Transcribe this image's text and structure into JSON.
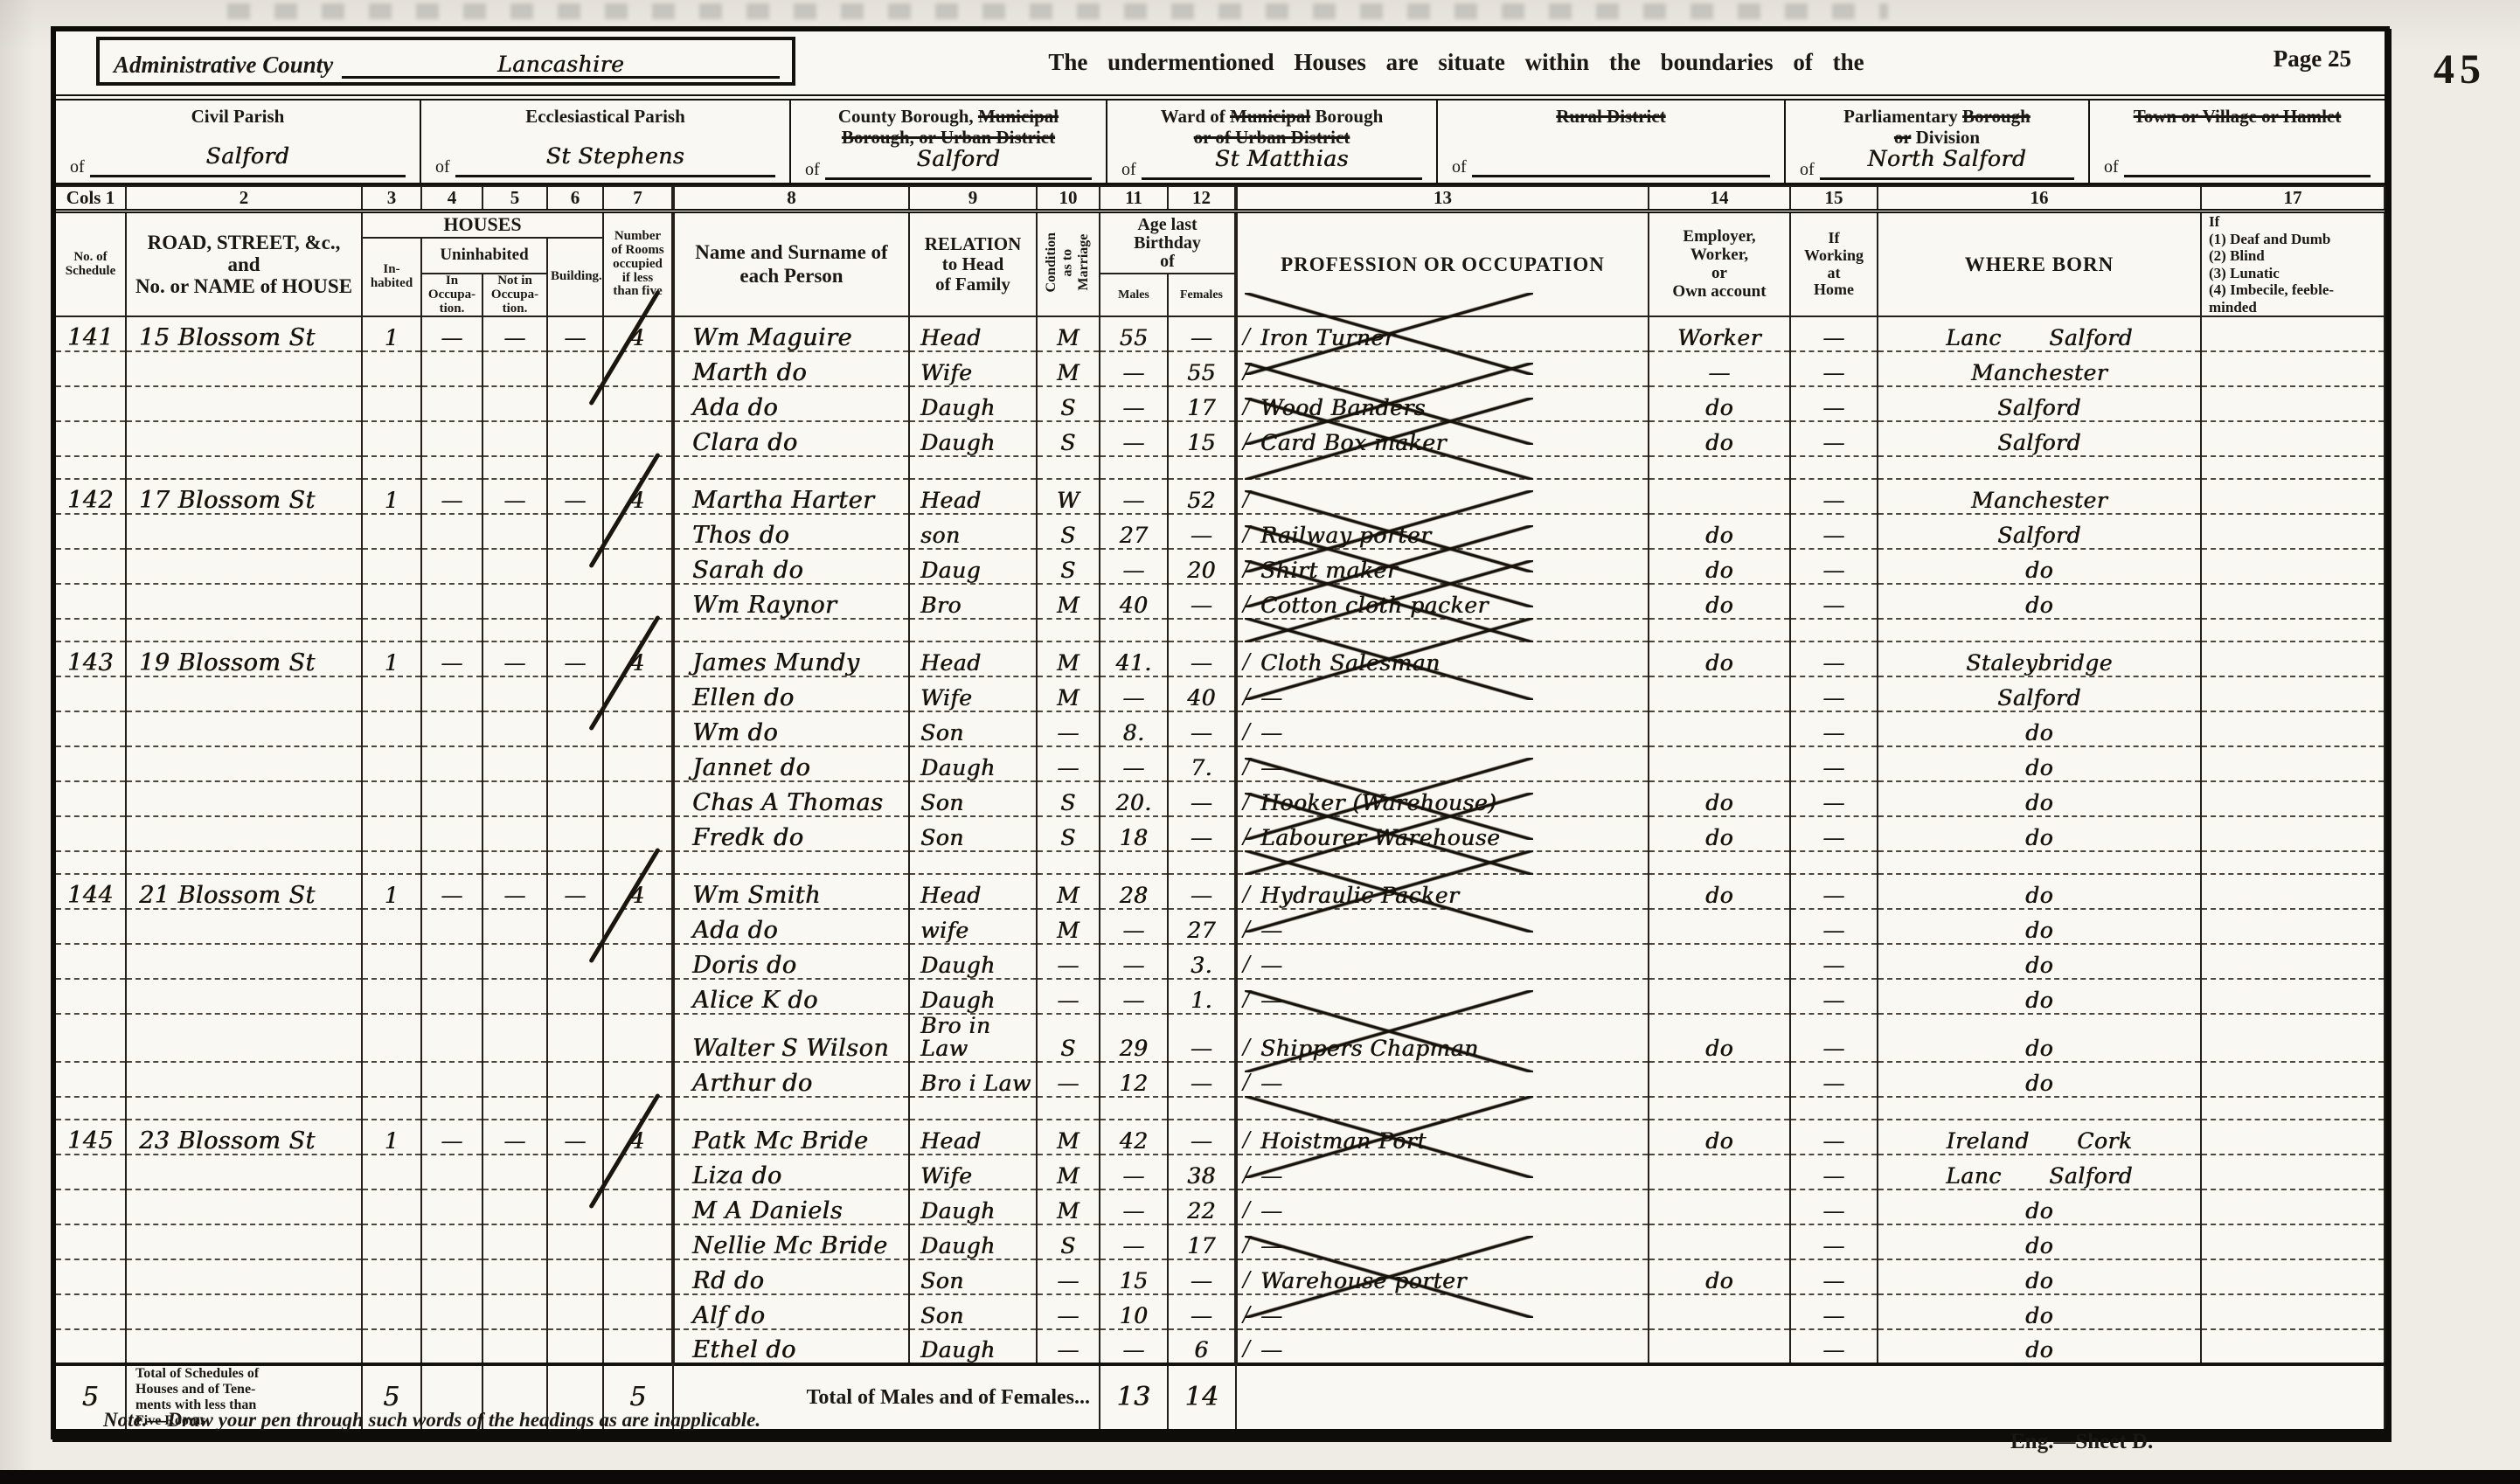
{
  "page": {
    "admin_county_label": "Administrative County",
    "admin_county_value": "Lancashire",
    "heading": "The undermentioned Houses are situate within the boundaries of the",
    "page_number_label": "Page 25",
    "folio_number": "45",
    "note": "Note.—Draw your pen through such words of the headings as are inapplicable.",
    "sheet_label": "Eng.—Sheet D."
  },
  "district_headers": [
    {
      "label_parts": [
        [
          {
            "t": "Civil Parish",
            "s": false
          }
        ]
      ],
      "of": "of",
      "value": "Salford"
    },
    {
      "label_parts": [
        [
          {
            "t": "Ecclesiastical Parish",
            "s": false
          }
        ]
      ],
      "of": "of",
      "value": "St Stephens"
    },
    {
      "label_parts": [
        [
          {
            "t": "County Borough, ",
            "s": false
          },
          {
            "t": "Municipal",
            "s": true
          }
        ],
        [
          {
            "t": "Borough, or Urban District",
            "s": true
          }
        ]
      ],
      "of": "of",
      "value": "Salford"
    },
    {
      "label_parts": [
        [
          {
            "t": "Ward of ",
            "s": false
          },
          {
            "t": "Municipal",
            "s": true
          },
          {
            "t": " Borough",
            "s": false
          }
        ],
        [
          {
            "t": "or of Urban District",
            "s": true
          }
        ]
      ],
      "of": "of",
      "value": "St Matthias"
    },
    {
      "label_parts": [
        [
          {
            "t": "Rural District",
            "s": true
          }
        ]
      ],
      "of": "of",
      "value": ""
    },
    {
      "label_parts": [
        [
          {
            "t": "Parliamentary ",
            "s": false
          },
          {
            "t": "Borough",
            "s": true
          }
        ],
        [
          {
            "t": "or",
            "s": true
          },
          {
            "t": " Division",
            "s": false
          }
        ]
      ],
      "of": "of",
      "value": "North Salford"
    },
    {
      "label_parts": [
        [
          {
            "t": "Town or Village or Hamlet",
            "s": true
          }
        ]
      ],
      "of": "of",
      "value": ""
    }
  ],
  "columns": {
    "numbers": [
      "Cols 1",
      "2",
      "3",
      "4",
      "5",
      "6",
      "7",
      "8",
      "9",
      "10",
      "11",
      "12",
      "13",
      "14",
      "15",
      "16",
      "17"
    ],
    "schedule": "No. of\nSchedule",
    "road": "ROAD, STREET, &c., and\nNo. or NAME of HOUSE",
    "houses_group": "HOUSES",
    "inhabited": "In-\nhabited",
    "uninhabited_group": "Uninhabited",
    "in_occupation": "In\nOccupa-\ntion.",
    "not_in_occupation": "Not in\nOccupa-\ntion.",
    "building": "Building.",
    "rooms": "Number\nof Rooms\noccupied\nif less\nthan five",
    "name": "Name and Surname of\neach Person",
    "relation": "RELATION\nto Head\nof Family",
    "condition": "Condition\nas to\nMarriage",
    "age_group": "Age last\nBirthday\nof",
    "males": "Males",
    "females": "Females",
    "profession": "PROFESSION OR OCCUPATION",
    "employer": "Employer,\nWorker,\nor\nOwn account",
    "at_home": "If\nWorking\nat\nHome",
    "where_born": "WHERE BORN",
    "infirmities": "If\n(1) Deaf and Dumb\n(2) Blind\n(3) Lunatic\n(4) Imbecile, feeble-\nminded"
  },
  "rows": [
    {
      "sched": "141",
      "addr": "15 Blossom St",
      "inh": "1",
      "u_in": "—",
      "u_not": "—",
      "bld": "—",
      "rooms": "4",
      "name": "Wm Maguire",
      "rel": "Head",
      "cond": "M",
      "m": "55",
      "f": "—",
      "occ": "Iron Turner",
      "crossed": true,
      "emp": "Worker",
      "home": "—",
      "born": "Lanc Salford"
    },
    {
      "name": "Marth do",
      "rel": "Wife",
      "cond": "M",
      "m": "—",
      "f": "55",
      "occ": "",
      "emp": "—",
      "home": "—",
      "born": "Manchester"
    },
    {
      "name": "Ada do",
      "rel": "Daugh",
      "cond": "S",
      "m": "—",
      "f": "17",
      "occ": "Wood Banders",
      "crossed": true,
      "emp": "do",
      "home": "—",
      "born": "Salford"
    },
    {
      "name": "Clara do",
      "rel": "Daugh",
      "cond": "S",
      "m": "—",
      "f": "15",
      "occ": "Card Box maker",
      "crossed": true,
      "emp": "do",
      "home": "—",
      "born": "Salford"
    },
    {
      "type": "sep"
    },
    {
      "sched": "142",
      "addr": "17 Blossom St",
      "inh": "1",
      "u_in": "—",
      "u_not": "—",
      "bld": "—",
      "rooms": "4",
      "name": "Martha Harter",
      "rel": "Head",
      "cond": "W",
      "m": "—",
      "f": "52",
      "occ": "",
      "emp": "",
      "home": "—",
      "born": "Manchester"
    },
    {
      "name": "Thos do",
      "rel": "son",
      "cond": "S",
      "m": "27",
      "f": "—",
      "occ": "Railway porter",
      "crossed": true,
      "emp": "do",
      "home": "—",
      "born": "Salford"
    },
    {
      "name": "Sarah do",
      "rel": "Daug",
      "cond": "S",
      "m": "—",
      "f": "20",
      "occ": "Shirt maker",
      "crossed": true,
      "emp": "do",
      "home": "—",
      "born": "do"
    },
    {
      "name": "Wm Raynor",
      "rel": "Bro",
      "cond": "M",
      "m": "40",
      "f": "—",
      "occ": "Cotton cloth packer",
      "crossed": true,
      "emp": "do",
      "home": "—",
      "born": "do"
    },
    {
      "type": "sep"
    },
    {
      "sched": "143",
      "addr": "19 Blossom St",
      "inh": "1",
      "u_in": "—",
      "u_not": "—",
      "bld": "—",
      "rooms": "4",
      "name": "James Mundy",
      "rel": "Head",
      "cond": "M",
      "m": "41.",
      "f": "—",
      "occ": "Cloth Salesman",
      "crossed": true,
      "emp": "do",
      "home": "—",
      "born": "Staleybridge"
    },
    {
      "name": "Ellen do",
      "rel": "Wife",
      "cond": "M",
      "m": "—",
      "f": "40",
      "occ": "—",
      "emp": "",
      "home": "—",
      "born": "Salford"
    },
    {
      "name": "Wm do",
      "rel": "Son",
      "cond": "—",
      "m": "8.",
      "f": "—",
      "occ": "—",
      "emp": "",
      "home": "—",
      "born": "do"
    },
    {
      "name": "Jannet do",
      "rel": "Daugh",
      "cond": "—",
      "m": "—",
      "f": "7.",
      "occ": "—",
      "emp": "",
      "home": "—",
      "born": "do"
    },
    {
      "name": "Chas A Thomas",
      "rel": "Son",
      "cond": "S",
      "m": "20.",
      "f": "—",
      "occ": "Hooker (Warehouse)",
      "crossed": true,
      "emp": "do",
      "home": "—",
      "born": "do"
    },
    {
      "name": "Fredk do",
      "rel": "Son",
      "cond": "S",
      "m": "18",
      "f": "—",
      "occ": "Labourer Warehouse",
      "crossed": true,
      "emp": "do",
      "home": "—",
      "born": "do"
    },
    {
      "type": "sep"
    },
    {
      "sched": "144",
      "addr": "21 Blossom St",
      "inh": "1",
      "u_in": "—",
      "u_not": "—",
      "bld": "—",
      "rooms": "4",
      "name": "Wm Smith",
      "rel": "Head",
      "cond": "M",
      "m": "28",
      "f": "—",
      "occ": "Hydraulic Packer",
      "crossed": true,
      "emp": "do",
      "home": "—",
      "born": "do"
    },
    {
      "name": "Ada do",
      "rel": "wife",
      "cond": "M",
      "m": "—",
      "f": "27",
      "occ": "—",
      "emp": "",
      "home": "—",
      "born": "do"
    },
    {
      "name": "Doris do",
      "rel": "Daugh",
      "cond": "—",
      "m": "—",
      "f": "3.",
      "occ": "—",
      "emp": "",
      "home": "—",
      "born": "do"
    },
    {
      "name": "Alice K do",
      "rel": "Daugh",
      "cond": "—",
      "m": "—",
      "f": "1.",
      "occ": "—",
      "emp": "",
      "home": "—",
      "born": "do"
    },
    {
      "name": "Walter S Wilson",
      "rel": "Bro in Law",
      "cond": "S",
      "m": "29",
      "f": "—",
      "occ": "Shippers Chapman",
      "crossed": true,
      "emp": "do",
      "home": "—",
      "born": "do"
    },
    {
      "name": "Arthur do",
      "rel": "Bro i Law",
      "cond": "—",
      "m": "12",
      "f": "—",
      "occ": "—",
      "emp": "",
      "home": "—",
      "born": "do"
    },
    {
      "type": "sep"
    },
    {
      "sched": "145",
      "addr": "23 Blossom St",
      "inh": "1",
      "u_in": "—",
      "u_not": "—",
      "bld": "—",
      "rooms": "4",
      "name": "Patk Mc Bride",
      "rel": "Head",
      "cond": "M",
      "m": "42",
      "f": "—",
      "occ": "Hoistman Port",
      "crossed": true,
      "emp": "do",
      "home": "—",
      "born": "Ireland Cork"
    },
    {
      "name": "Liza do",
      "rel": "Wife",
      "cond": "M",
      "m": "—",
      "f": "38",
      "occ": "—",
      "emp": "",
      "home": "—",
      "born": "Lanc Salford"
    },
    {
      "name": "M A Daniels",
      "rel": "Daugh",
      "cond": "M",
      "m": "—",
      "f": "22",
      "occ": "—",
      "emp": "",
      "home": "—",
      "born": "do"
    },
    {
      "name": "Nellie Mc Bride",
      "rel": "Daugh",
      "cond": "S",
      "m": "—",
      "f": "17",
      "occ": "—",
      "emp": "",
      "home": "—",
      "born": "do"
    },
    {
      "name": "Rd do",
      "rel": "Son",
      "cond": "—",
      "m": "15",
      "f": "—",
      "occ": "Warehouse porter",
      "crossed": true,
      "emp": "do",
      "home": "—",
      "born": "do"
    },
    {
      "name": "Alf do",
      "rel": "Son",
      "cond": "—",
      "m": "10",
      "f": "—",
      "occ": "—",
      "emp": "",
      "home": "—",
      "born": "do"
    },
    {
      "name": "Ethel do",
      "rel": "Daugh",
      "cond": "—",
      "m": "—",
      "f": "6",
      "occ": "—",
      "emp": "",
      "home": "—",
      "born": "do"
    }
  ],
  "totals": {
    "schedules_total": "5",
    "schedules_label": "Total of Schedules of\nHouses and of Tene-\nments with less than\nFive Rooms",
    "houses_total": "5",
    "rooms_total": "5",
    "males_females_label": "Total of Males and of Females...",
    "males_total": "13",
    "females_total": "14"
  }
}
